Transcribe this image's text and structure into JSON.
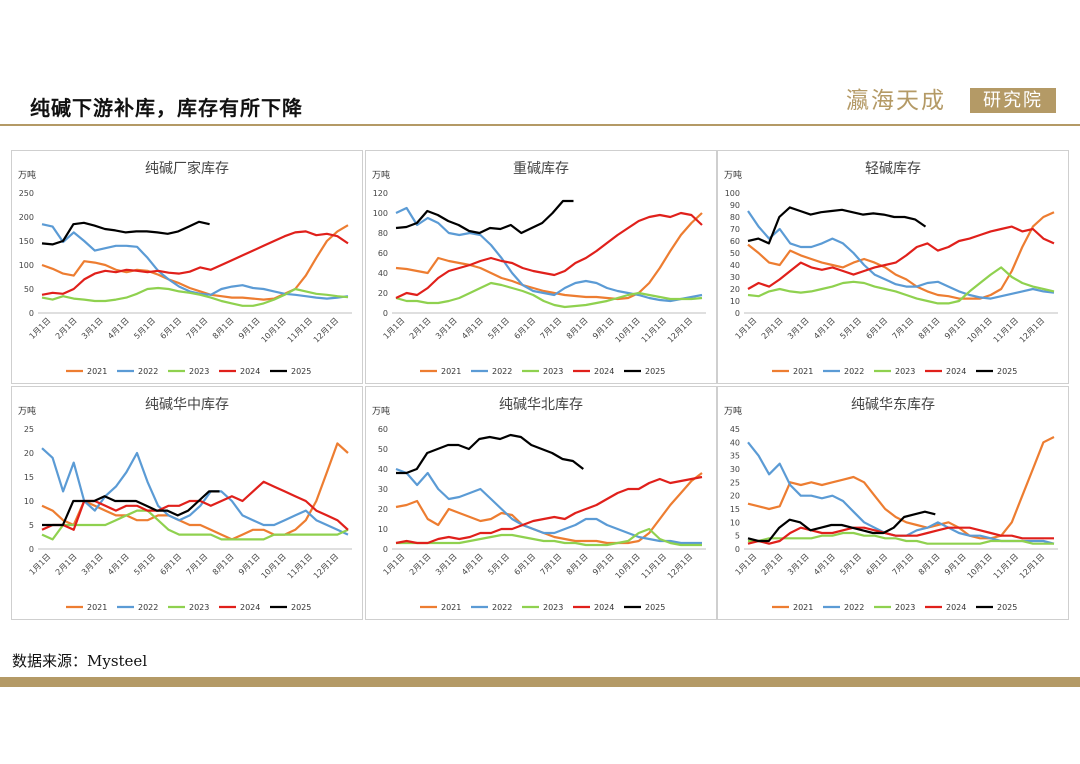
{
  "header": {
    "title": "纯碱下游补库，库存有所下降",
    "brand": "瀛海天成",
    "brand_seal": "研究院"
  },
  "footer": {
    "source": "数据来源：Mysteel"
  },
  "colors": {
    "2021": "#ed7d31",
    "2022": "#5b9bd5",
    "2023": "#8fd14f",
    "2024": "#e0201b",
    "2025": "#000000",
    "accent": "#b49a66"
  },
  "chart_data": [
    {
      "type": "line",
      "title": "纯碱厂家库存",
      "unit": "万吨",
      "ylim": [
        0,
        250
      ],
      "yticks": [
        0,
        50,
        100,
        150,
        200,
        250
      ],
      "xticks": [
        "1月1日",
        "2月1日",
        "3月1日",
        "4月1日",
        "5月1日",
        "6月1日",
        "7月1日",
        "8月1日",
        "9月1日",
        "10月1日",
        "11月1日",
        "12月1日"
      ],
      "series": [
        {
          "name": "2021",
          "values": [
            100,
            92,
            82,
            78,
            108,
            105,
            100,
            90,
            85,
            90,
            88,
            80,
            70,
            62,
            52,
            45,
            38,
            35,
            32,
            32,
            30,
            28,
            30,
            40,
            50,
            78,
            115,
            150,
            170,
            183
          ]
        },
        {
          "name": "2022",
          "values": [
            185,
            180,
            148,
            168,
            150,
            130,
            135,
            140,
            140,
            138,
            115,
            88,
            70,
            55,
            45,
            40,
            38,
            50,
            55,
            58,
            52,
            50,
            45,
            40,
            38,
            35,
            32,
            30,
            32,
            35
          ]
        },
        {
          "name": "2023",
          "values": [
            32,
            28,
            35,
            30,
            28,
            25,
            25,
            28,
            32,
            40,
            50,
            52,
            50,
            45,
            42,
            38,
            32,
            25,
            20,
            15,
            15,
            20,
            28,
            38,
            50,
            45,
            40,
            38,
            35,
            33
          ]
        },
        {
          "name": "2024",
          "values": [
            38,
            42,
            40,
            50,
            70,
            82,
            88,
            85,
            90,
            88,
            85,
            88,
            84,
            82,
            86,
            95,
            90,
            100,
            110,
            120,
            130,
            140,
            150,
            160,
            168,
            170,
            162,
            165,
            160,
            145
          ]
        },
        {
          "name": "2025",
          "values": [
            145,
            143,
            150,
            185,
            188,
            182,
            175,
            172,
            168,
            170,
            170,
            168,
            165,
            170,
            180,
            190,
            185
          ]
        }
      ]
    },
    {
      "type": "line",
      "title": "重碱库存",
      "unit": "万吨",
      "ylim": [
        0,
        120
      ],
      "yticks": [
        0,
        20,
        40,
        60,
        80,
        100,
        120
      ],
      "xticks": [
        "1月1日",
        "2月1日",
        "3月1日",
        "4月1日",
        "5月1日",
        "6月1日",
        "7月1日",
        "8月1日",
        "9月1日",
        "10月1日",
        "11月1日",
        "12月1日"
      ],
      "series": [
        {
          "name": "2021",
          "values": [
            45,
            44,
            42,
            40,
            55,
            52,
            50,
            48,
            45,
            40,
            35,
            32,
            28,
            25,
            22,
            20,
            18,
            17,
            16,
            16,
            15,
            14,
            15,
            20,
            30,
            45,
            62,
            78,
            90,
            100
          ]
        },
        {
          "name": "2022",
          "values": [
            100,
            105,
            88,
            95,
            90,
            80,
            78,
            80,
            78,
            68,
            55,
            40,
            28,
            22,
            20,
            18,
            25,
            30,
            32,
            30,
            25,
            22,
            20,
            18,
            15,
            13,
            12,
            14,
            16,
            18
          ]
        },
        {
          "name": "2023",
          "values": [
            15,
            12,
            12,
            10,
            10,
            12,
            15,
            20,
            25,
            30,
            28,
            25,
            22,
            18,
            12,
            8,
            6,
            7,
            8,
            10,
            12,
            15,
            18,
            20,
            18,
            16,
            14,
            14,
            14,
            15
          ]
        },
        {
          "name": "2024",
          "values": [
            15,
            20,
            18,
            25,
            35,
            42,
            45,
            48,
            52,
            55,
            52,
            50,
            45,
            42,
            40,
            38,
            42,
            50,
            55,
            62,
            70,
            78,
            85,
            92,
            96,
            98,
            96,
            100,
            98,
            88
          ]
        },
        {
          "name": "2025",
          "values": [
            85,
            86,
            90,
            102,
            98,
            92,
            88,
            82,
            80,
            85,
            84,
            88,
            80,
            85,
            90,
            100,
            112,
            112
          ]
        }
      ]
    },
    {
      "type": "line",
      "title": "轻碱库存",
      "unit": "万吨",
      "ylim": [
        0,
        100
      ],
      "yticks": [
        0,
        10,
        20,
        30,
        40,
        50,
        60,
        70,
        80,
        90,
        100
      ],
      "xticks": [
        "1月1日",
        "2月1日",
        "3月1日",
        "4月1日",
        "5月1日",
        "6月1日",
        "7月1日",
        "8月1日",
        "9月1日",
        "10月1日",
        "11月1日",
        "12月1日"
      ],
      "series": [
        {
          "name": "2021",
          "values": [
            57,
            50,
            42,
            40,
            52,
            48,
            45,
            42,
            40,
            38,
            42,
            45,
            42,
            38,
            32,
            28,
            22,
            18,
            15,
            14,
            12,
            12,
            12,
            15,
            20,
            35,
            55,
            72,
            80,
            84
          ]
        },
        {
          "name": "2022",
          "values": [
            85,
            72,
            62,
            70,
            58,
            55,
            55,
            58,
            62,
            58,
            50,
            40,
            32,
            28,
            24,
            22,
            22,
            25,
            26,
            22,
            18,
            15,
            13,
            12,
            14,
            16,
            18,
            20,
            18,
            17
          ]
        },
        {
          "name": "2023",
          "values": [
            15,
            14,
            18,
            20,
            18,
            17,
            18,
            20,
            22,
            25,
            26,
            25,
            22,
            20,
            18,
            15,
            12,
            10,
            8,
            8,
            10,
            18,
            25,
            32,
            38,
            30,
            25,
            22,
            20,
            18
          ]
        },
        {
          "name": "2024",
          "values": [
            20,
            25,
            22,
            28,
            35,
            42,
            38,
            36,
            38,
            35,
            32,
            35,
            38,
            40,
            42,
            48,
            55,
            58,
            52,
            55,
            60,
            62,
            65,
            68,
            70,
            72,
            68,
            70,
            62,
            58
          ]
        },
        {
          "name": "2025",
          "values": [
            60,
            62,
            58,
            80,
            88,
            85,
            82,
            84,
            85,
            86,
            84,
            82,
            83,
            82,
            80,
            80,
            78,
            72
          ]
        }
      ]
    },
    {
      "type": "line",
      "title": "纯碱华中库存",
      "unit": "万吨",
      "ylim": [
        0,
        25
      ],
      "yticks": [
        0,
        5,
        10,
        15,
        20,
        25
      ],
      "xticks": [
        "1月1日",
        "2月1日",
        "3月1日",
        "4月1日",
        "5月1日",
        "6月1日",
        "7月1日",
        "8月1日",
        "9月1日",
        "10月1日",
        "11月1日",
        "12月1日"
      ],
      "series": [
        {
          "name": "2021",
          "values": [
            9,
            8,
            6,
            5,
            10,
            9,
            8,
            7,
            7,
            6,
            6,
            7,
            7,
            6,
            5,
            5,
            4,
            3,
            2,
            3,
            4,
            4,
            3,
            3,
            4,
            6,
            10,
            16,
            22,
            20
          ]
        },
        {
          "name": "2022",
          "values": [
            21,
            19,
            12,
            18,
            10,
            8,
            11,
            13,
            16,
            20,
            14,
            9,
            7,
            6,
            7,
            9,
            12,
            12,
            10,
            7,
            6,
            5,
            5,
            6,
            7,
            8,
            6,
            5,
            4,
            3
          ]
        },
        {
          "name": "2023",
          "values": [
            3,
            2,
            5,
            5,
            5,
            5,
            5,
            6,
            7,
            8,
            8,
            6,
            4,
            3,
            3,
            3,
            3,
            2,
            2,
            2,
            2,
            2,
            3,
            3,
            3,
            3,
            3,
            3,
            3,
            4
          ]
        },
        {
          "name": "2024",
          "values": [
            4,
            5,
            5,
            4,
            10,
            10,
            9,
            8,
            9,
            9,
            8,
            8,
            9,
            9,
            10,
            10,
            9,
            10,
            11,
            10,
            12,
            14,
            13,
            12,
            11,
            10,
            8,
            7,
            6,
            4
          ]
        },
        {
          "name": "2025",
          "values": [
            5,
            5,
            5,
            10,
            10,
            10,
            11,
            10,
            10,
            10,
            9,
            8,
            8,
            7,
            8,
            10,
            12,
            12
          ]
        }
      ]
    },
    {
      "type": "line",
      "title": "纯碱华北库存",
      "unit": "万吨",
      "ylim": [
        0,
        60
      ],
      "yticks": [
        0,
        10,
        20,
        30,
        40,
        50,
        60
      ],
      "xticks": [
        "1月1日",
        "2月1日",
        "3月1日",
        "4月1日",
        "5月1日",
        "6月1日",
        "7月1日",
        "8月1日",
        "9月1日",
        "10月1日",
        "11月1日",
        "12月1日"
      ],
      "series": [
        {
          "name": "2021",
          "values": [
            21,
            22,
            24,
            15,
            12,
            20,
            18,
            16,
            14,
            15,
            18,
            17,
            12,
            10,
            8,
            6,
            5,
            4,
            4,
            4,
            3,
            3,
            3,
            4,
            8,
            15,
            22,
            28,
            34,
            38
          ]
        },
        {
          "name": "2022",
          "values": [
            40,
            38,
            32,
            38,
            30,
            25,
            26,
            28,
            30,
            25,
            20,
            15,
            12,
            10,
            8,
            8,
            10,
            12,
            15,
            15,
            12,
            10,
            8,
            6,
            5,
            4,
            4,
            3,
            3,
            3
          ]
        },
        {
          "name": "2023",
          "values": [
            3,
            3,
            3,
            3,
            3,
            3,
            3,
            4,
            5,
            6,
            7,
            7,
            6,
            5,
            4,
            4,
            3,
            3,
            2,
            2,
            2,
            3,
            4,
            8,
            10,
            5,
            3,
            2,
            2,
            2
          ]
        },
        {
          "name": "2024",
          "values": [
            3,
            4,
            3,
            3,
            5,
            6,
            5,
            6,
            8,
            8,
            10,
            10,
            12,
            14,
            15,
            16,
            15,
            18,
            20,
            22,
            25,
            28,
            30,
            30,
            33,
            35,
            33,
            34,
            35,
            36
          ]
        },
        {
          "name": "2025",
          "values": [
            38,
            38,
            40,
            48,
            50,
            52,
            52,
            50,
            55,
            56,
            55,
            57,
            56,
            52,
            50,
            48,
            45,
            44,
            40
          ]
        }
      ]
    },
    {
      "type": "line",
      "title": "纯碱华东库存",
      "unit": "万吨",
      "ylim": [
        0,
        45
      ],
      "yticks": [
        0,
        5,
        10,
        15,
        20,
        25,
        30,
        35,
        40,
        45
      ],
      "xticks": [
        "1月1日",
        "2月1日",
        "3月1日",
        "4月1日",
        "5月1日",
        "6月1日",
        "7月1日",
        "8月1日",
        "9月1日",
        "10月1日",
        "11月1日",
        "12月1日"
      ],
      "series": [
        {
          "name": "2021",
          "values": [
            17,
            16,
            15,
            16,
            25,
            24,
            25,
            24,
            25,
            26,
            27,
            25,
            20,
            15,
            12,
            10,
            9,
            8,
            9,
            10,
            8,
            5,
            4,
            4,
            5,
            10,
            20,
            30,
            40,
            42
          ]
        },
        {
          "name": "2022",
          "values": [
            40,
            35,
            28,
            32,
            24,
            20,
            20,
            19,
            20,
            18,
            14,
            10,
            8,
            6,
            5,
            5,
            7,
            8,
            10,
            8,
            6,
            5,
            5,
            4,
            3,
            3,
            3,
            3,
            3,
            2
          ]
        },
        {
          "name": "2023",
          "values": [
            3,
            3,
            4,
            4,
            4,
            4,
            4,
            5,
            5,
            6,
            6,
            5,
            5,
            4,
            4,
            3,
            3,
            2,
            2,
            2,
            2,
            2,
            2,
            3,
            3,
            3,
            3,
            2,
            2,
            2
          ]
        },
        {
          "name": "2024",
          "values": [
            2,
            3,
            2,
            3,
            6,
            8,
            7,
            6,
            6,
            7,
            8,
            8,
            7,
            6,
            5,
            5,
            5,
            6,
            7,
            8,
            8,
            8,
            7,
            6,
            5,
            5,
            4,
            4,
            4,
            4
          ]
        },
        {
          "name": "2025",
          "values": [
            4,
            3,
            3,
            8,
            11,
            10,
            7,
            8,
            9,
            9,
            8,
            7,
            6,
            6,
            8,
            12,
            13,
            14,
            13
          ]
        }
      ]
    }
  ]
}
